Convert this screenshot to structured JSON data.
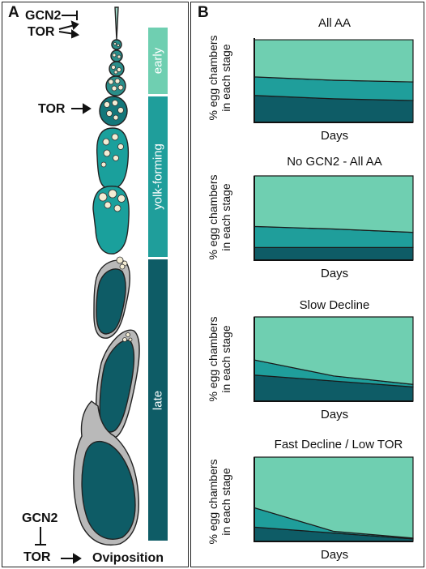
{
  "panel_a": {
    "letter": "A",
    "labels": {
      "gcn2_top": "GCN2",
      "tor_top": "TOR",
      "tor_mid": "TOR",
      "gcn2_bottom": "GCN2",
      "tor_bottom": "TOR",
      "oviposition": "Oviposition"
    },
    "stages": [
      {
        "label": "early",
        "color": "#6fcfb1"
      },
      {
        "label": "yolk-forming",
        "color": "#1f9e9b"
      },
      {
        "label": "late",
        "color": "#0e5c66"
      }
    ]
  },
  "panel_b": {
    "letter": "B",
    "ylabel_line1": "% egg chambers",
    "ylabel_line2": "in each stage",
    "xlabel": "Days",
    "colors": {
      "early": "#6fcfb1",
      "yolk": "#1f9e9b",
      "late": "#0e5c66"
    }
  },
  "chart_data": [
    {
      "type": "area",
      "title": "All AA",
      "xlabel": "Days",
      "ylabel": "% egg chambers in each stage",
      "x": [
        0,
        1,
        2
      ],
      "series": [
        {
          "values": [
            0.32,
            0.28,
            0.26
          ]
        },
        {
          "values": [
            0.22,
            0.22,
            0.22
          ]
        },
        {
          "values": [
            0.44,
            0.48,
            0.5
          ]
        }
      ]
    },
    {
      "type": "area",
      "title": "No GCN2 - All AA",
      "xlabel": "Days",
      "ylabel": "% egg chambers in each stage",
      "x": [
        0,
        1,
        2
      ],
      "series": [
        {
          "values": [
            0.15,
            0.15,
            0.15
          ]
        },
        {
          "values": [
            0.25,
            0.22,
            0.18
          ]
        },
        {
          "values": [
            0.6,
            0.63,
            0.67
          ]
        }
      ]
    },
    {
      "type": "area",
      "title": "Slow Decline",
      "xlabel": "Days",
      "ylabel": "% egg chambers in each stage",
      "x": [
        0,
        1,
        2
      ],
      "series": [
        {
          "values": [
            0.31,
            0.24,
            0.17
          ]
        },
        {
          "values": [
            0.18,
            0.06,
            0.03
          ]
        },
        {
          "values": [
            0.51,
            0.7,
            0.8
          ]
        }
      ]
    },
    {
      "type": "area",
      "title": "Fast Decline / Low TOR",
      "xlabel": "Days",
      "ylabel": "% egg chambers in each stage",
      "x": [
        0,
        1,
        2
      ],
      "series": [
        {
          "values": [
            0.17,
            0.1,
            0.03
          ]
        },
        {
          "values": [
            0.23,
            0.02,
            0.01
          ]
        },
        {
          "values": [
            0.6,
            0.88,
            0.96
          ]
        }
      ]
    }
  ]
}
